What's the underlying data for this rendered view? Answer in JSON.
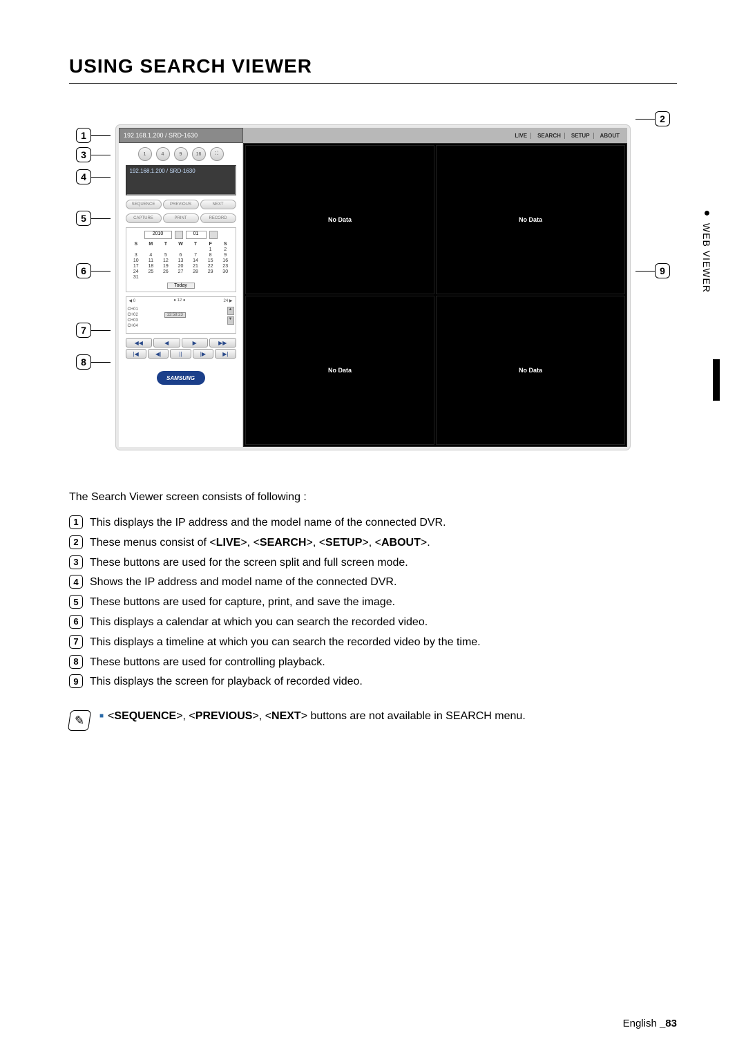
{
  "title": "USING SEARCH VIEWER",
  "sideTab": "WEB VIEWER",
  "viewer": {
    "addr": "192.168.1.200 / SRD-1630",
    "menus": [
      "LIVE",
      "SEARCH",
      "SETUP",
      "ABOUT"
    ],
    "splitButtons": [
      "1",
      "4",
      "9",
      "16",
      "⛶"
    ],
    "ipbox": "192.168.1.200  / SRD-1630",
    "seqRow": [
      "SEQUENCE",
      "PREVIOUS",
      "NEXT"
    ],
    "capRow": [
      "CAPTURE",
      "PRINT",
      "RECORD"
    ],
    "cal": {
      "year": "2010",
      "month": "01",
      "days": [
        "S",
        "M",
        "T",
        "W",
        "T",
        "F",
        "S"
      ],
      "cells": [
        "",
        "",
        "",
        "",
        "",
        "1",
        "2",
        "3",
        "4",
        "5",
        "6",
        "7",
        "8",
        "9",
        "10",
        "11",
        "12",
        "13",
        "14",
        "15",
        "16",
        "17",
        "18",
        "19",
        "20",
        "21",
        "22",
        "23",
        "24",
        "25",
        "26",
        "27",
        "28",
        "29",
        "30",
        "31",
        "",
        "",
        "",
        "",
        "",
        ""
      ],
      "today": "Today"
    },
    "timeline": {
      "left": "◀  0",
      "mid": "● 12 ●",
      "right": "24  ▶",
      "channels": [
        "CH01",
        "CH02",
        "CH03",
        "CH04"
      ],
      "tag": "13:58:23"
    },
    "playback": {
      "row1": [
        "◀◀",
        "◀",
        "▶",
        "▶▶"
      ],
      "row2": [
        "|◀",
        "◀|",
        "||",
        "|▶",
        "▶|"
      ]
    },
    "logo": "SAMSUNG",
    "noData": "No Data"
  },
  "callouts": {
    "c1": "1",
    "c2": "2",
    "c3": "3",
    "c4": "4",
    "c5": "5",
    "c6": "6",
    "c7": "7",
    "c8": "8",
    "c9": "9"
  },
  "descriptionIntro": "The Search Viewer screen consists of following :",
  "items": [
    {
      "n": "1",
      "t": "This displays the IP address and the model name of the connected DVR."
    },
    {
      "n": "2",
      "t": "These menus consist of <LIVE>, <SEARCH>, <SETUP>, <ABOUT>.",
      "bold": [
        "LIVE",
        "SEARCH",
        "SETUP",
        "ABOUT"
      ]
    },
    {
      "n": "3",
      "t": "These buttons are used for the screen split and full screen mode."
    },
    {
      "n": "4",
      "t": "Shows the IP address and model name of the connected DVR."
    },
    {
      "n": "5",
      "t": "These buttons are used for capture, print, and save the image."
    },
    {
      "n": "6",
      "t": "This displays a calendar at which you can search the recorded video."
    },
    {
      "n": "7",
      "t": "This displays a timeline at which you can search the recorded video by the time."
    },
    {
      "n": "8",
      "t": "These buttons are used for controlling playback."
    },
    {
      "n": "9",
      "t": "This displays the screen for playback of recorded video."
    }
  ],
  "note": "<SEQUENCE>, <PREVIOUS>, <NEXT> buttons are not available in SEARCH menu.",
  "noteBold": [
    "SEQUENCE",
    "PREVIOUS",
    "NEXT"
  ],
  "footer": {
    "lang": "English ",
    "page": "_83"
  }
}
